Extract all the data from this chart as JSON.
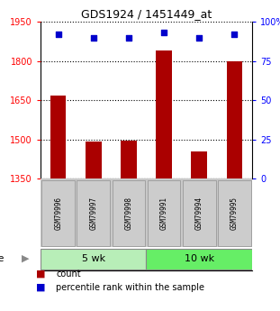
{
  "title": "GDS1924 / 1451449_at",
  "samples": [
    "GSM79996",
    "GSM79997",
    "GSM79998",
    "GSM79991",
    "GSM79994",
    "GSM79995"
  ],
  "bar_values": [
    1668,
    1493,
    1495,
    1840,
    1455,
    1800
  ],
  "percentile_values": [
    92,
    90,
    90,
    93,
    90,
    92
  ],
  "bar_color": "#aa0000",
  "dot_color": "#0000cc",
  "ylim_left": [
    1350,
    1950
  ],
  "ylim_right": [
    0,
    100
  ],
  "yticks_left": [
    1350,
    1500,
    1650,
    1800,
    1950
  ],
  "yticks_right": [
    0,
    25,
    50,
    75,
    100
  ],
  "group_color_5wk": "#b8eeb8",
  "group_color_10wk": "#66ee66",
  "legend_count": "count",
  "legend_percentile": "percentile rank within the sample"
}
